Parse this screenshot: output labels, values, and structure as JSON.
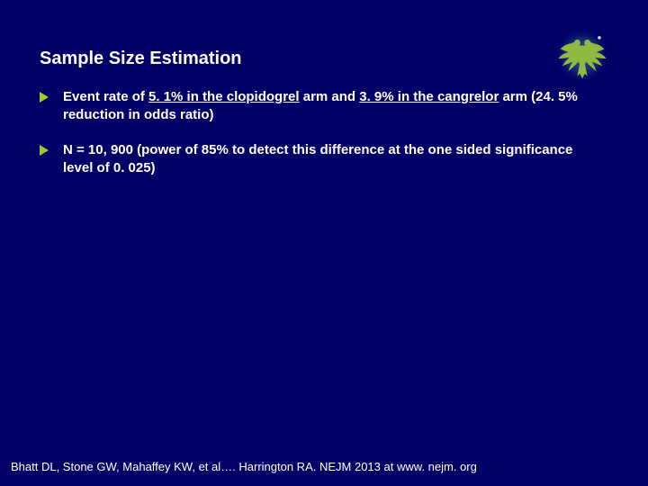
{
  "title": "Sample Size Estimation",
  "bullets": [
    {
      "parts": [
        {
          "text": "Event rate of ",
          "underline": false
        },
        {
          "text": "5. 1% in the clopidogrel",
          "underline": true
        },
        {
          "text": " arm and ",
          "underline": false
        },
        {
          "text": "3. 9% in the cangrelor",
          "underline": true
        },
        {
          "text": " arm (24. 5%  reduction in odds ratio)",
          "underline": false
        }
      ]
    },
    {
      "parts": [
        {
          "text": "N = 10, 900 (power of 85% to detect this difference at the one sided significance level of 0. 025)",
          "underline": false
        }
      ]
    }
  ],
  "citation": "Bhatt DL, Stone GW, Mahaffey KW, et al…. Harrington RA. NEJM 2013 at www. nejm. org",
  "colors": {
    "background": "#000066",
    "text": "#ffffff",
    "bullet_marker": "#99cc33",
    "logo_bird": "#8fb93f",
    "logo_glow1": "#4a6fa8",
    "logo_glow2": "#1a3570"
  },
  "title_fontsize": 20,
  "bullet_fontsize": 15,
  "citation_fontsize": 13,
  "logo": {
    "type": "eagle-emblem",
    "position": "top-right"
  }
}
